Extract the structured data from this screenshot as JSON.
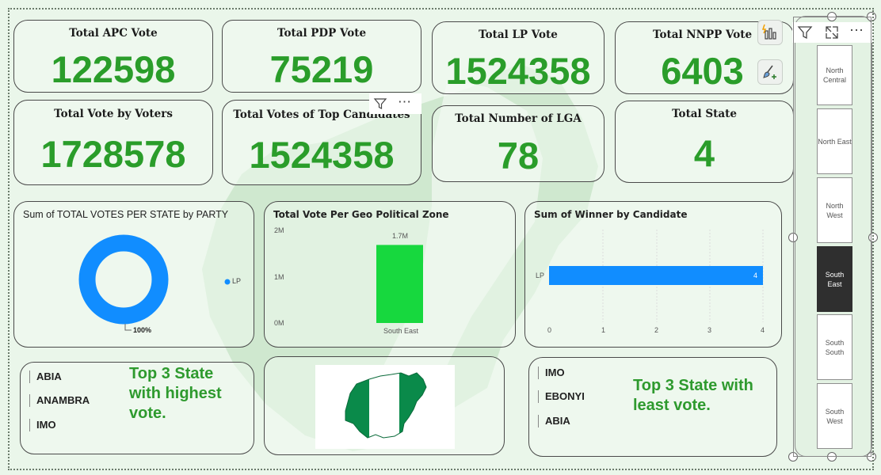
{
  "kpis": [
    {
      "title": "Total APC Vote",
      "value": "122598"
    },
    {
      "title": "Total PDP Vote",
      "value": "75219"
    },
    {
      "title": "Total LP Vote",
      "value": "1524358"
    },
    {
      "title": "Total NNPP Vote",
      "value": "6403"
    },
    {
      "title": "Total Vote by Voters",
      "value": "1728578"
    },
    {
      "title": "Total Votes of Top Candidates",
      "value": "1524358"
    },
    {
      "title": "Total Number of LGA",
      "value": "78"
    },
    {
      "title": "Total State",
      "value": "4"
    }
  ],
  "donut": {
    "title": "Sum of TOTAL VOTES PER STATE by PARTY",
    "legend": "LP",
    "percent_label": "100%",
    "color": "#118dff"
  },
  "zone_chart": {
    "title": "Total Vote Per Geo Political Zone",
    "y_ticks": [
      "2M",
      "1M",
      "0M"
    ],
    "bar_label": "1.7M",
    "category": "South East",
    "color": "#17d83e"
  },
  "winner_chart": {
    "title": "Sum of Winner by Candidate",
    "category": "LP",
    "value_label": "4",
    "x_ticks": [
      "0",
      "1",
      "2",
      "3",
      "4"
    ],
    "color": "#118dff"
  },
  "top_states": {
    "items": [
      "ABIA",
      "ANAMBRA",
      "IMO"
    ],
    "note": "Top 3 State with highest vote."
  },
  "least_states": {
    "items": [
      "IMO",
      "EBONYI",
      "ABIA"
    ],
    "note": "Top 3 State with least vote."
  },
  "slicer": {
    "items": [
      "North Central",
      "North East",
      "North West",
      "South East",
      "South South",
      "South West"
    ],
    "selected": "South East"
  },
  "toolbar": {
    "more_glyph": "⋯",
    "filter_icon": "filter-icon",
    "focus_icon": "focus-mode-icon"
  },
  "chart_data": [
    {
      "type": "pie",
      "title": "Sum of TOTAL VOTES PER STATE by PARTY",
      "categories": [
        "LP"
      ],
      "values": [
        100
      ],
      "unit": "%"
    },
    {
      "type": "bar",
      "title": "Total Vote Per Geo Political Zone",
      "categories": [
        "South East"
      ],
      "values": [
        1700000
      ],
      "ylim": [
        0,
        2000000
      ],
      "y_ticks": [
        "0M",
        "1M",
        "2M"
      ]
    },
    {
      "type": "bar",
      "orientation": "horizontal",
      "title": "Sum of Winner by Candidate",
      "categories": [
        "LP"
      ],
      "values": [
        4
      ],
      "xlim": [
        0,
        4
      ]
    }
  ]
}
